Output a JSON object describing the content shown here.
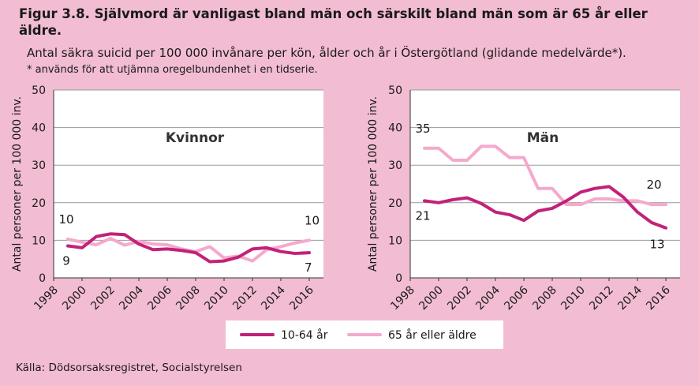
{
  "figure": {
    "title": "Figur 3.8. Självmord är vanligast bland män och särskilt bland män som är 65 år eller äldre.",
    "subtitle": "Antal säkra suicid per 100 000 invånare per kön, ålder och år i Östergötland (glidande medelvärde*).",
    "note": "* används för att utjämna oregelbundenhet i en tidserie.",
    "source": "Källa: Dödsorsaksregistret, Socialstyrelsen"
  },
  "legend": {
    "items": [
      {
        "label": "10-64 år",
        "color": "#c2217a"
      },
      {
        "label": "65 år eller äldre",
        "color": "#f5a9cc"
      }
    ]
  },
  "chart_data": [
    {
      "type": "line",
      "title": "Kvinnor",
      "ylabel": "Antal personer per 100 000 inv.",
      "xlabel": "",
      "ylim": [
        0,
        50
      ],
      "yticks": [
        0,
        10,
        20,
        30,
        40,
        50
      ],
      "xticks": [
        "1998",
        "2000",
        "2002",
        "2004",
        "2006",
        "2008",
        "2010",
        "2012",
        "2014",
        "2016"
      ],
      "x": [
        1999,
        2000,
        2001,
        2002,
        2003,
        2004,
        2005,
        2006,
        2007,
        2008,
        2009,
        2010,
        2011,
        2012,
        2013,
        2014,
        2015,
        2016
      ],
      "series": [
        {
          "name": "10-64 år",
          "values": [
            8.5,
            8.0,
            11.0,
            11.7,
            11.5,
            9.0,
            7.5,
            7.7,
            7.3,
            6.7,
            4.3,
            4.5,
            5.5,
            7.7,
            8.0,
            7.0,
            6.5,
            6.7
          ]
        },
        {
          "name": "65 år eller äldre",
          "values": [
            10.3,
            9.5,
            8.8,
            10.5,
            8.7,
            9.7,
            9.0,
            8.8,
            7.7,
            7.0,
            8.3,
            5.3,
            5.8,
            4.5,
            7.5,
            8.3,
            9.3,
            10.0
          ]
        }
      ],
      "annotations": [
        {
          "text": "10",
          "series": "65 år eller äldre",
          "point": "start"
        },
        {
          "text": "9",
          "series": "10-64 år",
          "point": "start"
        },
        {
          "text": "10",
          "series": "65 år eller äldre",
          "point": "end"
        },
        {
          "text": "7",
          "series": "10-64 år",
          "point": "end"
        }
      ]
    },
    {
      "type": "line",
      "title": "Män",
      "ylabel": "Antal personer per 100 000 inv.",
      "xlabel": "",
      "ylim": [
        0,
        50
      ],
      "yticks": [
        0,
        10,
        20,
        30,
        40,
        50
      ],
      "xticks": [
        "1998",
        "2000",
        "2002",
        "2004",
        "2006",
        "2008",
        "2010",
        "2012",
        "2014",
        "2016"
      ],
      "x": [
        1999,
        2000,
        2001,
        2002,
        2003,
        2004,
        2005,
        2006,
        2007,
        2008,
        2009,
        2010,
        2011,
        2012,
        2013,
        2014,
        2015,
        2016
      ],
      "series": [
        {
          "name": "10-64 år",
          "values": [
            20.5,
            20.0,
            20.8,
            21.3,
            19.8,
            17.5,
            16.8,
            15.3,
            17.8,
            18.5,
            20.5,
            22.8,
            23.8,
            24.3,
            21.5,
            17.5,
            14.7,
            13.3
          ]
        },
        {
          "name": "65 år eller äldre",
          "values": [
            34.5,
            34.5,
            31.3,
            31.3,
            35.0,
            35.0,
            32.0,
            32.0,
            23.8,
            23.8,
            19.5,
            19.5,
            21.0,
            21.0,
            20.5,
            20.5,
            19.5,
            19.5
          ]
        }
      ],
      "annotations": [
        {
          "text": "35",
          "series": "65 år eller äldre",
          "point": "start"
        },
        {
          "text": "21",
          "series": "10-64 år",
          "point": "start"
        },
        {
          "text": "20",
          "series": "65 år eller äldre",
          "point": "end"
        },
        {
          "text": "13",
          "series": "10-64 år",
          "point": "end"
        }
      ]
    }
  ]
}
